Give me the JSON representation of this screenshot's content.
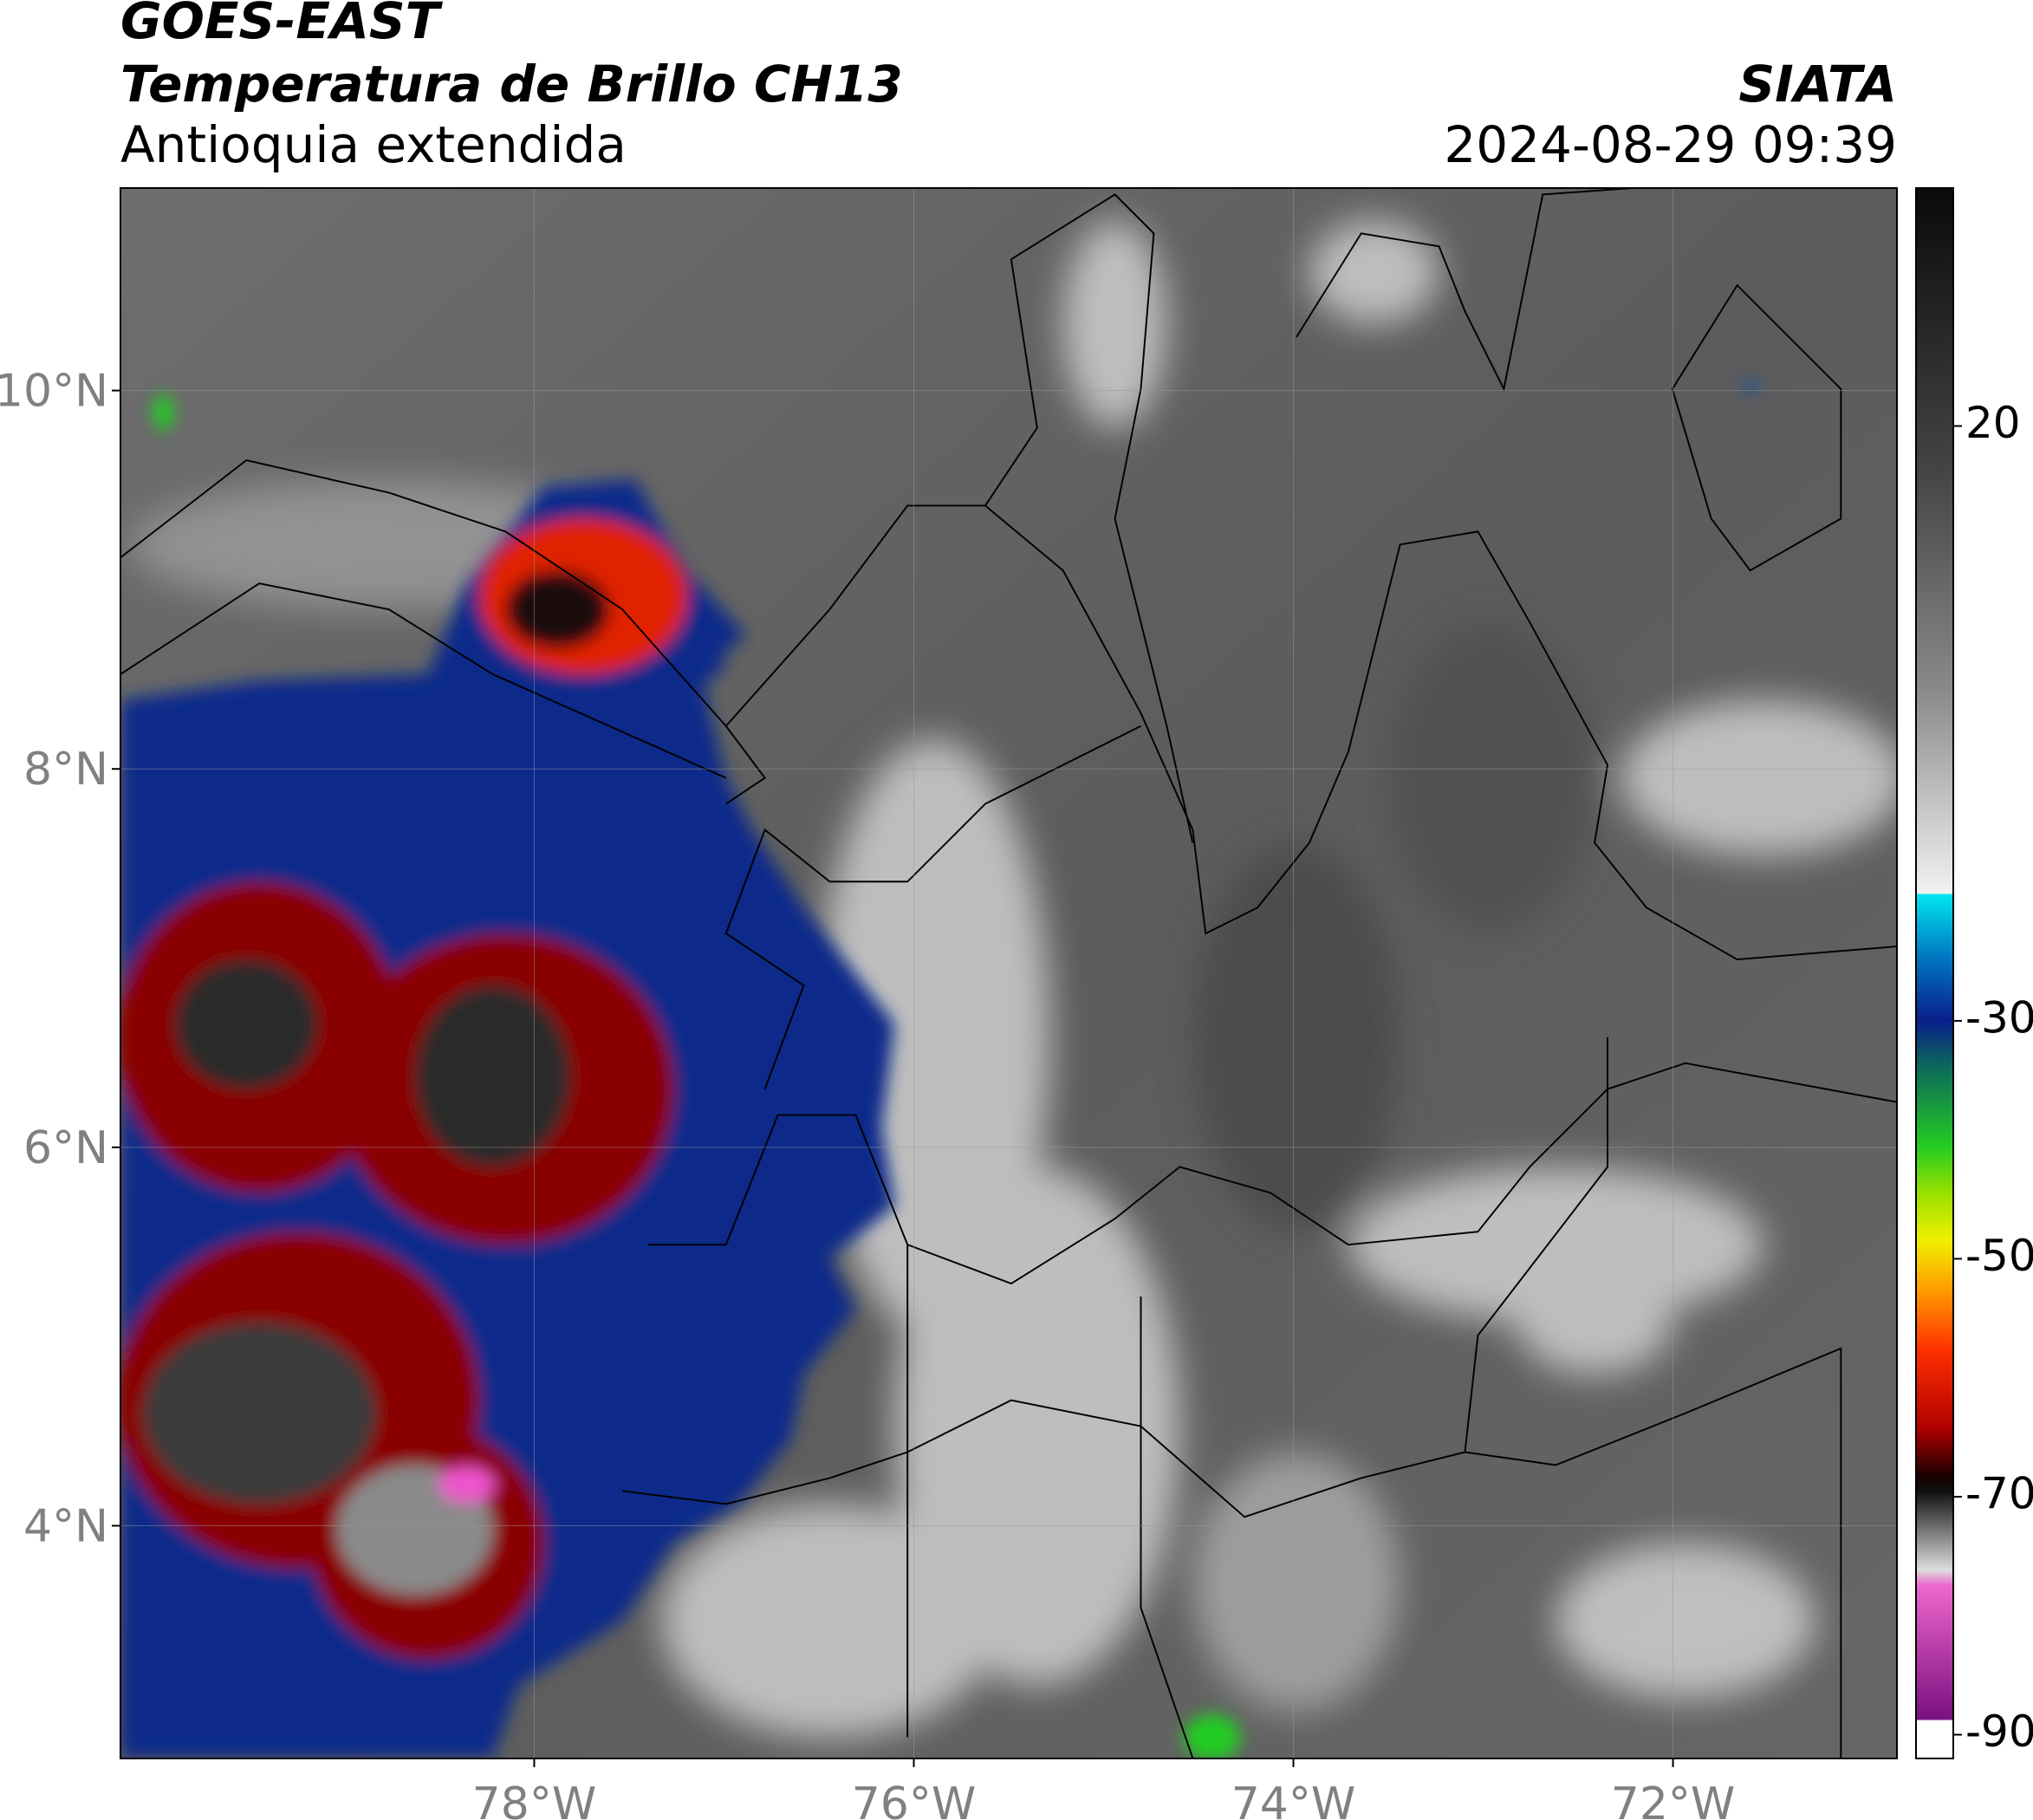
{
  "chart_data": {
    "type": "map",
    "title": "GOES-EAST",
    "subtitle": "Temperatura de Brillo CH13",
    "region": "Antioquia extendida",
    "source": "SIATA",
    "timestamp": "2024-08-29 09:39",
    "xlim": [
      -80.18,
      -70.82
    ],
    "ylim": [
      2.77,
      11.07
    ],
    "xticks": [
      {
        "value": -78,
        "label": "78°W"
      },
      {
        "value": -76,
        "label": "76°W"
      },
      {
        "value": -74,
        "label": "74°W"
      },
      {
        "value": -72,
        "label": "72°W"
      }
    ],
    "yticks": [
      {
        "value": 10,
        "label": "10°N"
      },
      {
        "value": 8,
        "label": "8°N"
      },
      {
        "value": 6,
        "label": "6°N"
      },
      {
        "value": 4,
        "label": "4°N"
      }
    ],
    "grid": true,
    "colorbar": {
      "lim": [
        -92,
        40
      ],
      "ticks": [
        20,
        -30,
        -50,
        -70,
        -90
      ]
    }
  }
}
